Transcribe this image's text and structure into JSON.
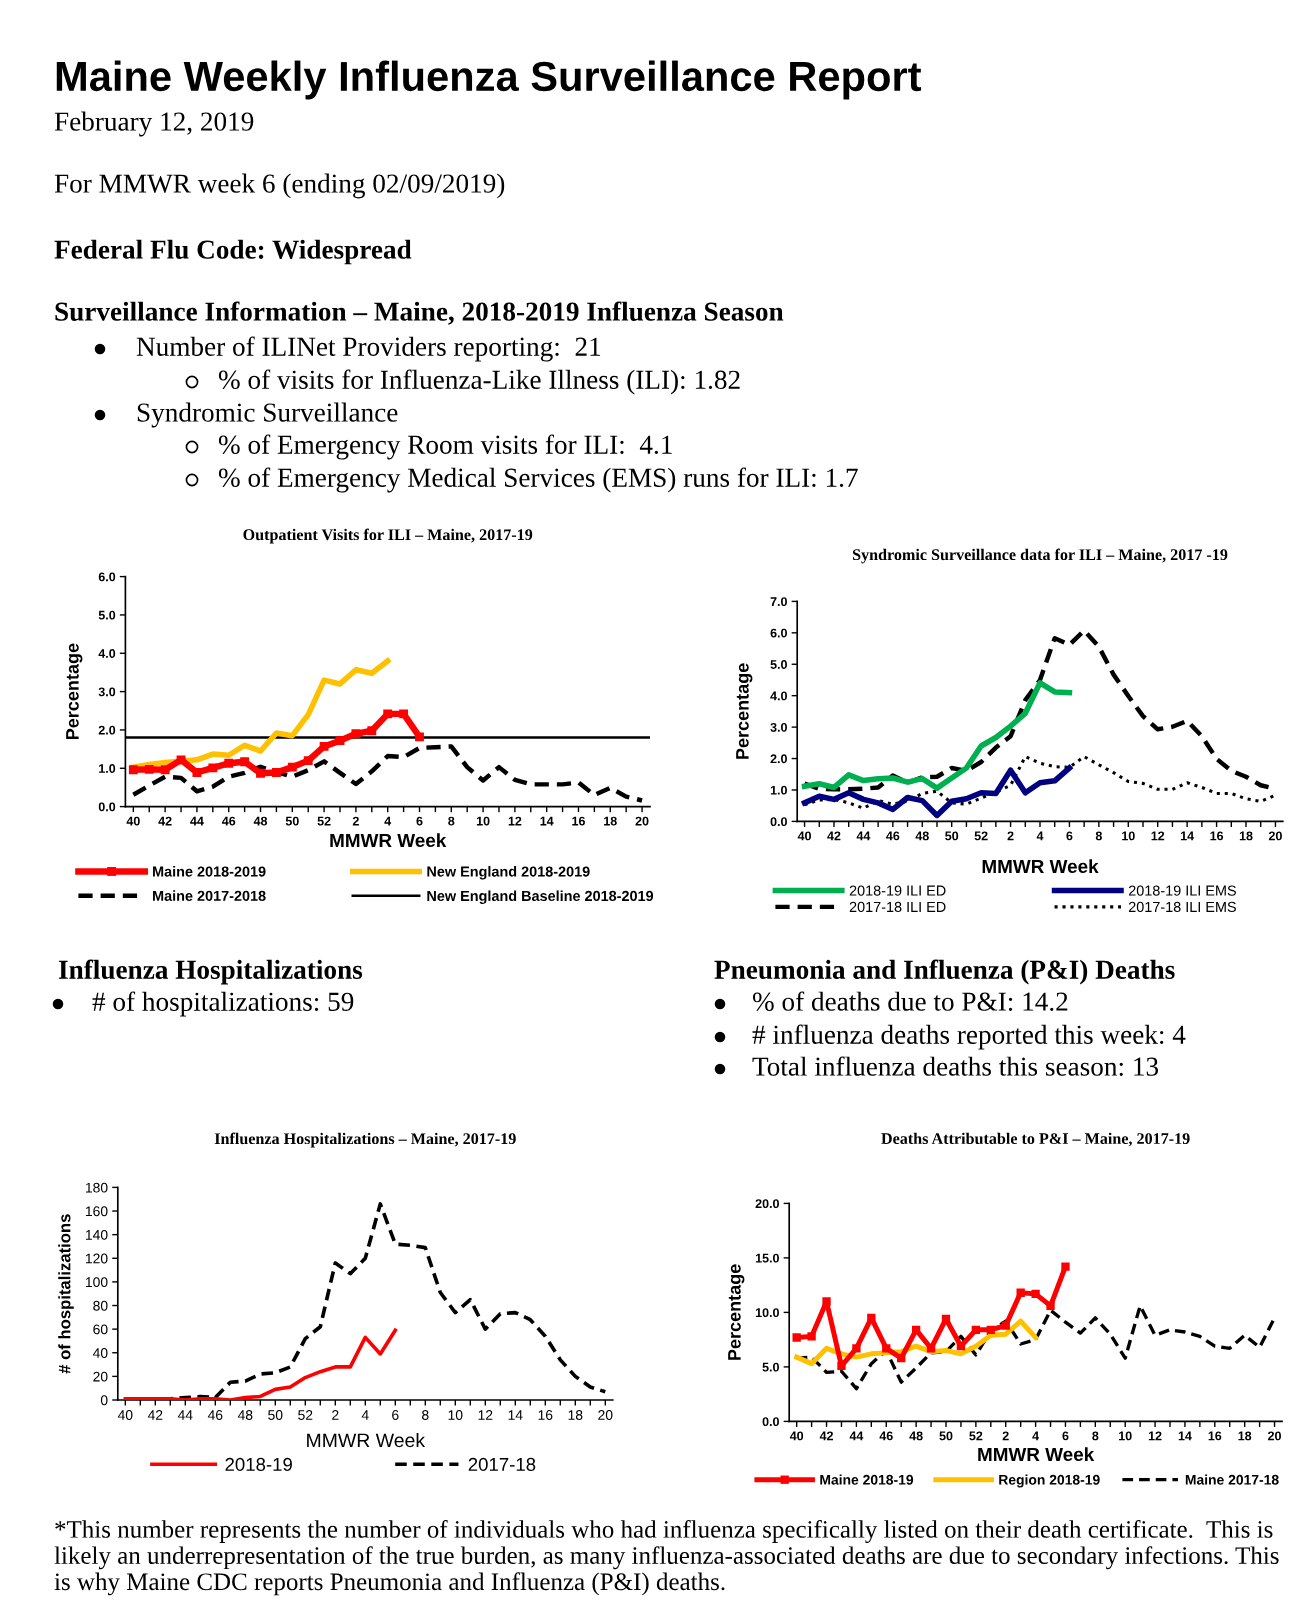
{
  "chart_data": [
    {
      "type": "other",
      "title": "Maine Weekly Influenza Surveillance Report",
      "subtitle": "February 12, 2019",
      "annotations": [
        "For MMWR week 6 (ending 02/09/2019)",
        "Federal Flu Code: Widespread",
        "Surveillance Information – Maine, 2018-2019 Influenza Season",
        "Number of ILINet Providers reporting:  21",
        "% of visits for Influenza-Like Illness (ILI): 1.82",
        "Syndromic Surveillance",
        "% of Emergency Room visits for ILI:  4.1",
        "% of Emergency Medical Services (EMS) runs for ILI: 1.7"
      ]
    },
    {
      "type": "line",
      "title": "Outpatient Visits for ILI – Maine, 2017-19",
      "xlabel": "MMWR Week",
      "ylabel": "Percentage",
      "categories": [
        "40",
        null,
        "42",
        null,
        "44",
        null,
        "46",
        null,
        "48",
        null,
        "50",
        null,
        "52",
        null,
        "2",
        null,
        "4",
        null,
        "6",
        null,
        "8",
        null,
        "10",
        null,
        "12",
        null,
        "14",
        null,
        "16",
        null,
        "18",
        null,
        "20"
      ],
      "ylim": [
        0,
        6
      ],
      "yticks": [
        {
          "value": 0,
          "label": "0.0"
        },
        {
          "value": 1,
          "label": "1.0"
        },
        {
          "value": 2,
          "label": "2.0"
        },
        {
          "value": 3,
          "label": "3.0"
        },
        {
          "value": 4,
          "label": "4.0"
        },
        {
          "value": 5,
          "label": "5.0"
        },
        {
          "value": 6,
          "label": "6.0"
        }
      ],
      "legend": "bottom",
      "series": [
        {
          "name": "Maine 2018-2019",
          "color": "#ff0000",
          "marker": "square",
          "line_style": "solid",
          "values": [
            0.96,
            0.97,
            0.96,
            1.22,
            0.89,
            1.01,
            1.13,
            1.17,
            0.87,
            0.89,
            1.03,
            1.2,
            1.57,
            1.72,
            1.9,
            1.98,
            2.42,
            2.42,
            1.82,
            null,
            null,
            null,
            null,
            null,
            null,
            null,
            null,
            null,
            null,
            null,
            null,
            null,
            null
          ]
        },
        {
          "name": "New England 2018-2019",
          "color": "#ffc000",
          "line_style": "solid",
          "values": [
            1.03,
            1.1,
            1.15,
            1.18,
            1.22,
            1.37,
            1.34,
            1.6,
            1.45,
            1.92,
            1.85,
            2.4,
            3.3,
            3.2,
            3.57,
            3.48,
            3.8,
            null,
            null,
            null,
            null,
            null,
            null,
            null,
            null,
            null,
            null,
            null,
            null,
            null,
            null,
            null,
            null
          ]
        },
        {
          "name": "Maine 2017-2018",
          "color": "#000000",
          "line_style": "dashed",
          "values": [
            0.31,
            0.55,
            0.78,
            0.75,
            0.4,
            0.52,
            0.78,
            0.88,
            1.04,
            0.9,
            0.78,
            0.95,
            1.18,
            0.88,
            0.59,
            0.92,
            1.32,
            1.29,
            1.53,
            1.55,
            1.57,
            1.03,
            0.68,
            1.03,
            0.7,
            0.58,
            0.58,
            0.58,
            0.63,
            0.3,
            0.49,
            0.26,
            0.16
          ]
        }
      ],
      "ref_lines": [
        {
          "axis": "y",
          "value": 1.8,
          "label": "New England Baseline 2018-2019",
          "color": "#000000",
          "line_style": "solid"
        }
      ]
    },
    {
      "type": "line",
      "title": "Syndromic Surveillance data for ILI – Maine, 2017 -19",
      "xlabel": "MMWR Week",
      "ylabel": "Percentage",
      "categories": [
        "40",
        null,
        "42",
        null,
        "44",
        null,
        "46",
        null,
        "48",
        null,
        "50",
        null,
        "52",
        null,
        "2",
        null,
        "4",
        null,
        "6",
        null,
        "8",
        null,
        "10",
        null,
        "12",
        null,
        "14",
        null,
        "16",
        null,
        "18",
        null,
        "20"
      ],
      "ylim": [
        0,
        7
      ],
      "yticks": [
        {
          "value": 0,
          "label": "0.0"
        },
        {
          "value": 1,
          "label": "1.0"
        },
        {
          "value": 2,
          "label": "2.0"
        },
        {
          "value": 3,
          "label": "3.0"
        },
        {
          "value": 4,
          "label": "4.0"
        },
        {
          "value": 5,
          "label": "5.0"
        },
        {
          "value": 6,
          "label": "6.0"
        },
        {
          "value": 7,
          "label": "7.0"
        }
      ],
      "legend": "bottom",
      "series": [
        {
          "name": "2018-19 ILI ED",
          "color": "#00b050",
          "line_style": "solid",
          "values": [
            1.12,
            1.2,
            1.08,
            1.48,
            1.3,
            1.36,
            1.38,
            1.25,
            1.36,
            1.06,
            1.38,
            1.7,
            2.4,
            2.67,
            3.03,
            3.44,
            4.41,
            4.12,
            4.1,
            null,
            null,
            null,
            null,
            null,
            null,
            null,
            null,
            null,
            null,
            null,
            null,
            null,
            null
          ]
        },
        {
          "name": "2018-19 ILI EMS",
          "color": "#000080",
          "line_style": "solid",
          "values": [
            0.59,
            0.8,
            0.7,
            0.91,
            0.7,
            0.59,
            0.38,
            0.76,
            0.66,
            0.19,
            0.64,
            0.72,
            0.91,
            0.89,
            1.63,
            0.91,
            1.23,
            1.29,
            1.7,
            null,
            null,
            null,
            null,
            null,
            null,
            null,
            null,
            null,
            null,
            null,
            null,
            null,
            null
          ]
        },
        {
          "name": "2017-18 ILI ED",
          "color": "#000000",
          "line_style": "dashed",
          "values": [
            1.2,
            1.04,
            1.02,
            1.02,
            1.04,
            1.08,
            1.46,
            1.23,
            1.4,
            1.42,
            1.7,
            1.61,
            1.89,
            2.35,
            2.71,
            3.86,
            4.5,
            5.83,
            5.62,
            6.07,
            5.56,
            4.67,
            3.99,
            3.35,
            2.93,
            3.01,
            3.2,
            2.71,
            1.99,
            1.61,
            1.42,
            1.15,
            1.04
          ]
        },
        {
          "name": "2017-18 ILI EMS",
          "color": "#000000",
          "line_style": "dotted",
          "values": [
            0.53,
            0.68,
            0.7,
            0.59,
            0.42,
            0.66,
            0.55,
            0.64,
            0.89,
            0.96,
            0.59,
            0.55,
            0.74,
            0.93,
            1.15,
            2.06,
            1.85,
            1.74,
            1.72,
            2.06,
            1.8,
            1.55,
            1.27,
            1.21,
            1.02,
            1.02,
            1.23,
            1.08,
            0.89,
            0.89,
            0.72,
            0.64,
            0.83
          ]
        }
      ]
    },
    {
      "type": "other",
      "title": "Influenza Hospitalizations",
      "annotations": [
        "# of hospitalizations: 59"
      ]
    },
    {
      "type": "other",
      "title": "Pneumonia and Influenza (P&I) Deaths",
      "annotations": [
        "% of deaths due to P&I: 14.2",
        "# influenza deaths reported this week: 4",
        "Total influenza deaths this season: 13"
      ]
    },
    {
      "type": "line",
      "title": "Influenza Hospitalizations – Maine, 2017-19",
      "xlabel": "MMWR Week",
      "ylabel": "# of hospitalizations",
      "categories": [
        "40",
        null,
        "42",
        null,
        "44",
        null,
        "46",
        null,
        "48",
        null,
        "50",
        null,
        "52",
        null,
        "2",
        null,
        "4",
        null,
        "6",
        null,
        "8",
        null,
        "10",
        null,
        "12",
        null,
        "14",
        null,
        "16",
        null,
        "18",
        null,
        "20"
      ],
      "ylim": [
        0,
        180
      ],
      "yticks": [
        0,
        20,
        40,
        60,
        80,
        100,
        120,
        140,
        160,
        180
      ],
      "legend": "bottom",
      "series": [
        {
          "name": "2018-19",
          "color": "#ff0000",
          "line_style": "solid",
          "values": [
            1,
            1,
            1,
            1,
            0,
            1,
            1,
            0,
            2,
            3,
            9,
            11,
            19,
            24,
            28,
            28,
            53,
            39,
            59,
            null,
            null,
            null,
            null,
            null,
            null,
            null,
            null,
            null,
            null,
            null,
            null,
            null,
            null
          ]
        },
        {
          "name": "2017-18",
          "color": "#000000",
          "line_style": "dashed",
          "values": [
            1,
            1,
            1,
            1,
            2,
            3,
            2,
            15,
            16,
            22,
            23,
            28,
            52,
            62,
            116,
            107,
            120,
            166,
            132,
            131,
            129,
            91,
            74,
            85,
            60,
            73,
            74,
            68,
            54,
            34,
            20,
            11,
            7
          ]
        }
      ]
    },
    {
      "type": "line",
      "title": "Deaths Attributable to P&I – Maine, 2017-19",
      "xlabel": "MMWR Week",
      "ylabel": "Percentage",
      "categories": [
        "40",
        null,
        "42",
        null,
        "44",
        null,
        "46",
        null,
        "48",
        null,
        "50",
        null,
        "52",
        null,
        "2",
        null,
        "4",
        null,
        "6",
        null,
        "8",
        null,
        "10",
        null,
        "12",
        null,
        "14",
        null,
        "16",
        null,
        "18",
        null,
        "20"
      ],
      "ylim": [
        0,
        20
      ],
      "yticks": [
        {
          "value": 0,
          "label": "0.0"
        },
        {
          "value": 5,
          "label": "5.0"
        },
        {
          "value": 10,
          "label": "10.0"
        },
        {
          "value": 15,
          "label": "15.0"
        },
        {
          "value": 20,
          "label": "20.0"
        }
      ],
      "legend": "bottom",
      "series": [
        {
          "name": "Maine 2018-19",
          "color": "#ff0000",
          "marker": "square",
          "line_style": "solid",
          "values": [
            7.7,
            7.8,
            11.0,
            5.1,
            6.7,
            9.5,
            6.7,
            5.8,
            8.4,
            6.7,
            9.4,
            6.9,
            8.4,
            8.4,
            8.8,
            11.8,
            11.7,
            10.6,
            14.2,
            null,
            null,
            null,
            null,
            null,
            null,
            null,
            null,
            null,
            null,
            null,
            null,
            null,
            null
          ]
        },
        {
          "name": "Region 2018-19",
          "color": "#ffc000",
          "line_style": "solid",
          "values": [
            5.9,
            5.3,
            6.7,
            6.2,
            5.9,
            6.2,
            6.3,
            6.4,
            6.9,
            6.4,
            6.5,
            6.2,
            6.9,
            7.9,
            8.0,
            9.2,
            7.7,
            null,
            null,
            null,
            null,
            null,
            null,
            null,
            null,
            null,
            null,
            null,
            null,
            null,
            null,
            null,
            null
          ]
        },
        {
          "name": "Maine 2017-18",
          "color": "#000000",
          "line_style": "dashed",
          "values": [
            5.8,
            5.9,
            4.5,
            4.6,
            3.0,
            5.3,
            6.5,
            3.6,
            4.9,
            6.3,
            6.4,
            7.8,
            6.1,
            8.3,
            9.2,
            7.1,
            7.5,
            10.2,
            9.1,
            8.1,
            9.5,
            8.0,
            5.8,
            10.6,
            7.9,
            8.4,
            8.2,
            7.8,
            6.9,
            6.7,
            7.9,
            6.8,
            9.5
          ]
        }
      ]
    },
    {
      "type": "other",
      "annotations": [
        "*This number represents the number of individuals who had influenza specifically listed on their death certificate.  This is likely an underrepresentation of the true burden, as many influenza-associated deaths are due to secondary infections. This is why Maine CDC reports Pneumonia and Influenza (P&I) deaths."
      ]
    }
  ]
}
